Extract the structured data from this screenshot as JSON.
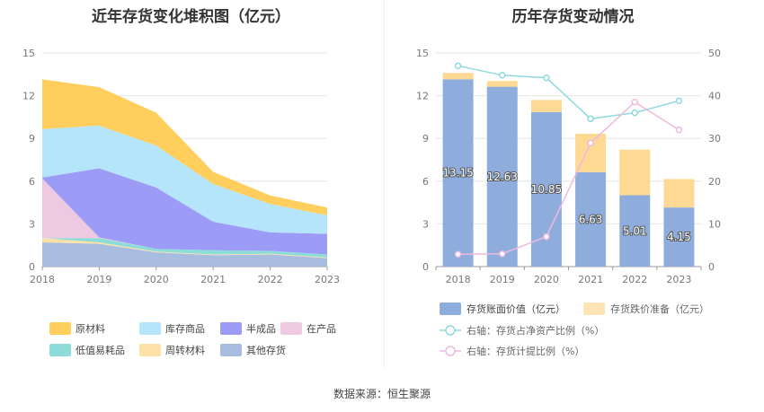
{
  "left_title": "近年存货变化堆积图（亿元）",
  "right_title": "历年存货变动情况",
  "source": "数据来源：恒生聚源",
  "colors": {
    "原材料": "#FFCE5C",
    "库存商品": "#B5E5FB",
    "半成品": "#9C9BF5",
    "在产品": "#EDC9E2",
    "低值易耗品": "#8DDCDA",
    "周转材料": "#FDE1A7",
    "其他存货": "#A7BCDF",
    "bar_value": "#8EADDC",
    "bar_provision": "#FDD994",
    "line_ratio": "#8FD9DF",
    "line_provision": "#ECBADF"
  },
  "chart_data": [
    {
      "type": "area",
      "stacked": true,
      "title": "近年存货变化堆积图（亿元）",
      "x": [
        "2018",
        "2019",
        "2020",
        "2021",
        "2022",
        "2023"
      ],
      "ylim": [
        0,
        15
      ],
      "yticks": [
        "0",
        "3",
        "6",
        "9",
        "12",
        "15"
      ],
      "series": [
        {
          "name": "其他存货",
          "values": [
            1.7,
            1.6,
            1.0,
            0.8,
            0.85,
            0.6
          ]
        },
        {
          "name": "周转材料",
          "values": [
            0.3,
            0.1,
            0.05,
            0.05,
            0.05,
            0.05
          ]
        },
        {
          "name": "低值易耗品",
          "values": [
            0.0,
            0.3,
            0.2,
            0.3,
            0.2,
            0.2
          ]
        },
        {
          "name": "在产品",
          "values": [
            4.2,
            0.05,
            0.0,
            0.0,
            0.0,
            0.0
          ]
        },
        {
          "name": "半成品",
          "values": [
            0.05,
            4.85,
            4.3,
            2.0,
            1.3,
            1.45
          ]
        },
        {
          "name": "库存商品",
          "values": [
            3.4,
            3.0,
            2.95,
            2.65,
            2.0,
            1.3
          ]
        },
        {
          "name": "原材料",
          "values": [
            3.5,
            2.7,
            2.3,
            0.85,
            0.6,
            0.55
          ]
        }
      ],
      "legend": [
        "原材料",
        "库存商品",
        "半成品",
        "在产品",
        "低值易耗品",
        "周转材料",
        "其他存货"
      ],
      "legend_position": "bottom"
    },
    {
      "type": "bar",
      "stacked": true,
      "title": "历年存货变动情况",
      "categories": [
        "2018",
        "2019",
        "2020",
        "2021",
        "2022",
        "2023"
      ],
      "ylim": [
        0,
        15
      ],
      "yticks": [
        "0",
        "3",
        "6",
        "9",
        "12",
        "15"
      ],
      "y2lim": [
        0,
        50
      ],
      "y2ticks": [
        "0",
        "10",
        "20",
        "30",
        "40",
        "50"
      ],
      "series": [
        {
          "name": "存货账面价值（亿元）",
          "values": [
            13.15,
            12.63,
            10.85,
            6.63,
            5.01,
            4.15
          ],
          "labels": [
            "13.15",
            "12.63",
            "10.85",
            "6.63",
            "5.01",
            "4.15"
          ]
        },
        {
          "name": "存货跌价准备（亿元）",
          "values": [
            0.45,
            0.4,
            0.85,
            2.7,
            3.2,
            2.0
          ]
        }
      ],
      "lines": [
        {
          "name": "右轴：存货占净资产比例（%）",
          "values": [
            47.0,
            44.8,
            44.2,
            34.6,
            36.0,
            38.8
          ]
        },
        {
          "name": "右轴：存货计提比例（%）",
          "values": [
            2.9,
            3.0,
            7.0,
            28.9,
            38.5,
            32.0
          ]
        }
      ],
      "legend_position": "bottom"
    }
  ]
}
